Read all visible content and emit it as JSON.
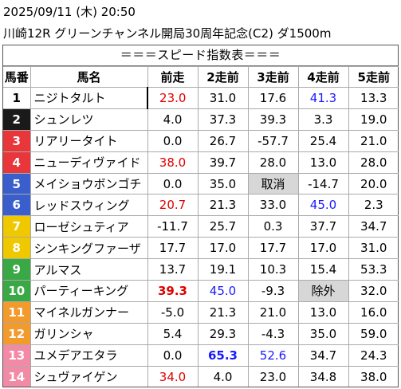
{
  "header": {
    "line1": "2025/09/11 (木) 20:50",
    "line2": "川崎12R グリーンチャンネル開局30周年記念(C2) ダ1500m"
  },
  "table": {
    "banner": "＝＝＝スピード指数表＝＝＝",
    "columns": [
      "馬番",
      "馬名",
      "前走",
      "2走前",
      "3走前",
      "4走前",
      "5走前"
    ],
    "rows": [
      {
        "num": "1",
        "name": "ニジトタルト",
        "bg": "#ffffff",
        "fg": "#000000",
        "vals": [
          "23.0",
          "31.0",
          "17.6",
          "41.3",
          "13.3"
        ],
        "styles": [
          "red",
          "",
          "",
          "blue",
          ""
        ]
      },
      {
        "num": "2",
        "name": "シュンレツ",
        "bg": "#1a1a1a",
        "fg": "#ffffff",
        "vals": [
          "4.0",
          "37.3",
          "39.3",
          "3.3",
          "19.0"
        ],
        "styles": [
          "",
          "",
          "",
          "",
          ""
        ]
      },
      {
        "num": "3",
        "name": "リアリータイト",
        "bg": "#e8363b",
        "fg": "#ffffff",
        "vals": [
          "0.0",
          "26.7",
          "-57.7",
          "25.4",
          "21.0"
        ],
        "styles": [
          "",
          "",
          "",
          "",
          ""
        ]
      },
      {
        "num": "4",
        "name": "ニューディヴァイド",
        "bg": "#e8363b",
        "fg": "#ffffff",
        "vals": [
          "38.0",
          "39.7",
          "28.0",
          "13.0",
          "28.0"
        ],
        "styles": [
          "red",
          "",
          "",
          "",
          ""
        ]
      },
      {
        "num": "5",
        "name": "メイショウボンゴチ",
        "bg": "#3a5fcd",
        "fg": "#ffffff",
        "vals": [
          "0.0",
          "35.0",
          "取消",
          "-14.7",
          "20.0"
        ],
        "styles": [
          "",
          "",
          "grey",
          "",
          ""
        ]
      },
      {
        "num": "6",
        "name": "レッドスウィング",
        "bg": "#3a5fcd",
        "fg": "#ffffff",
        "vals": [
          "20.7",
          "21.3",
          "33.0",
          "45.0",
          "2.3"
        ],
        "styles": [
          "red",
          "",
          "",
          "blue",
          ""
        ]
      },
      {
        "num": "7",
        "name": "ローゼシュティア",
        "bg": "#f0c800",
        "fg": "#ffffff",
        "vals": [
          "-11.7",
          "25.7",
          "0.3",
          "37.7",
          "34.7"
        ],
        "styles": [
          "",
          "",
          "",
          "",
          ""
        ]
      },
      {
        "num": "8",
        "name": "シンキングファーザ",
        "bg": "#f0c800",
        "fg": "#ffffff",
        "vals": [
          "17.7",
          "17.0",
          "17.7",
          "17.0",
          "31.0"
        ],
        "styles": [
          "",
          "",
          "",
          "",
          ""
        ]
      },
      {
        "num": "9",
        "name": "アルマス",
        "bg": "#3aa845",
        "fg": "#ffffff",
        "vals": [
          "13.7",
          "19.1",
          "10.3",
          "15.4",
          "53.3"
        ],
        "styles": [
          "",
          "",
          "",
          "",
          ""
        ]
      },
      {
        "num": "10",
        "name": "パーティーキング",
        "bg": "#3aa845",
        "fg": "#ffffff",
        "vals": [
          "39.3",
          "45.0",
          "-9.3",
          "除外",
          "32.0"
        ],
        "styles": [
          "red bold",
          "blue",
          "",
          "grey",
          ""
        ]
      },
      {
        "num": "11",
        "name": "マイネルガンナー",
        "bg": "#f39a2c",
        "fg": "#ffffff",
        "vals": [
          "-5.0",
          "21.3",
          "21.0",
          "13.0",
          "16.0"
        ],
        "styles": [
          "",
          "",
          "",
          "",
          ""
        ]
      },
      {
        "num": "12",
        "name": "ガリンシャ",
        "bg": "#f39a2c",
        "fg": "#ffffff",
        "vals": [
          "5.4",
          "29.3",
          "-4.3",
          "35.0",
          "59.0"
        ],
        "styles": [
          "",
          "",
          "",
          "",
          ""
        ]
      },
      {
        "num": "13",
        "name": "ユメデアエタラ",
        "bg": "#f28aa6",
        "fg": "#ffffff",
        "vals": [
          "0.0",
          "65.3",
          "52.6",
          "34.7",
          "24.3"
        ],
        "styles": [
          "",
          "blue bold",
          "blue",
          "",
          ""
        ]
      },
      {
        "num": "14",
        "name": "シュヴァイゲン",
        "bg": "#f28aa6",
        "fg": "#ffffff",
        "vals": [
          "34.0",
          "4.0",
          "23.0",
          "34.8",
          "38.0"
        ],
        "styles": [
          "red",
          "",
          "",
          "",
          ""
        ]
      }
    ]
  }
}
